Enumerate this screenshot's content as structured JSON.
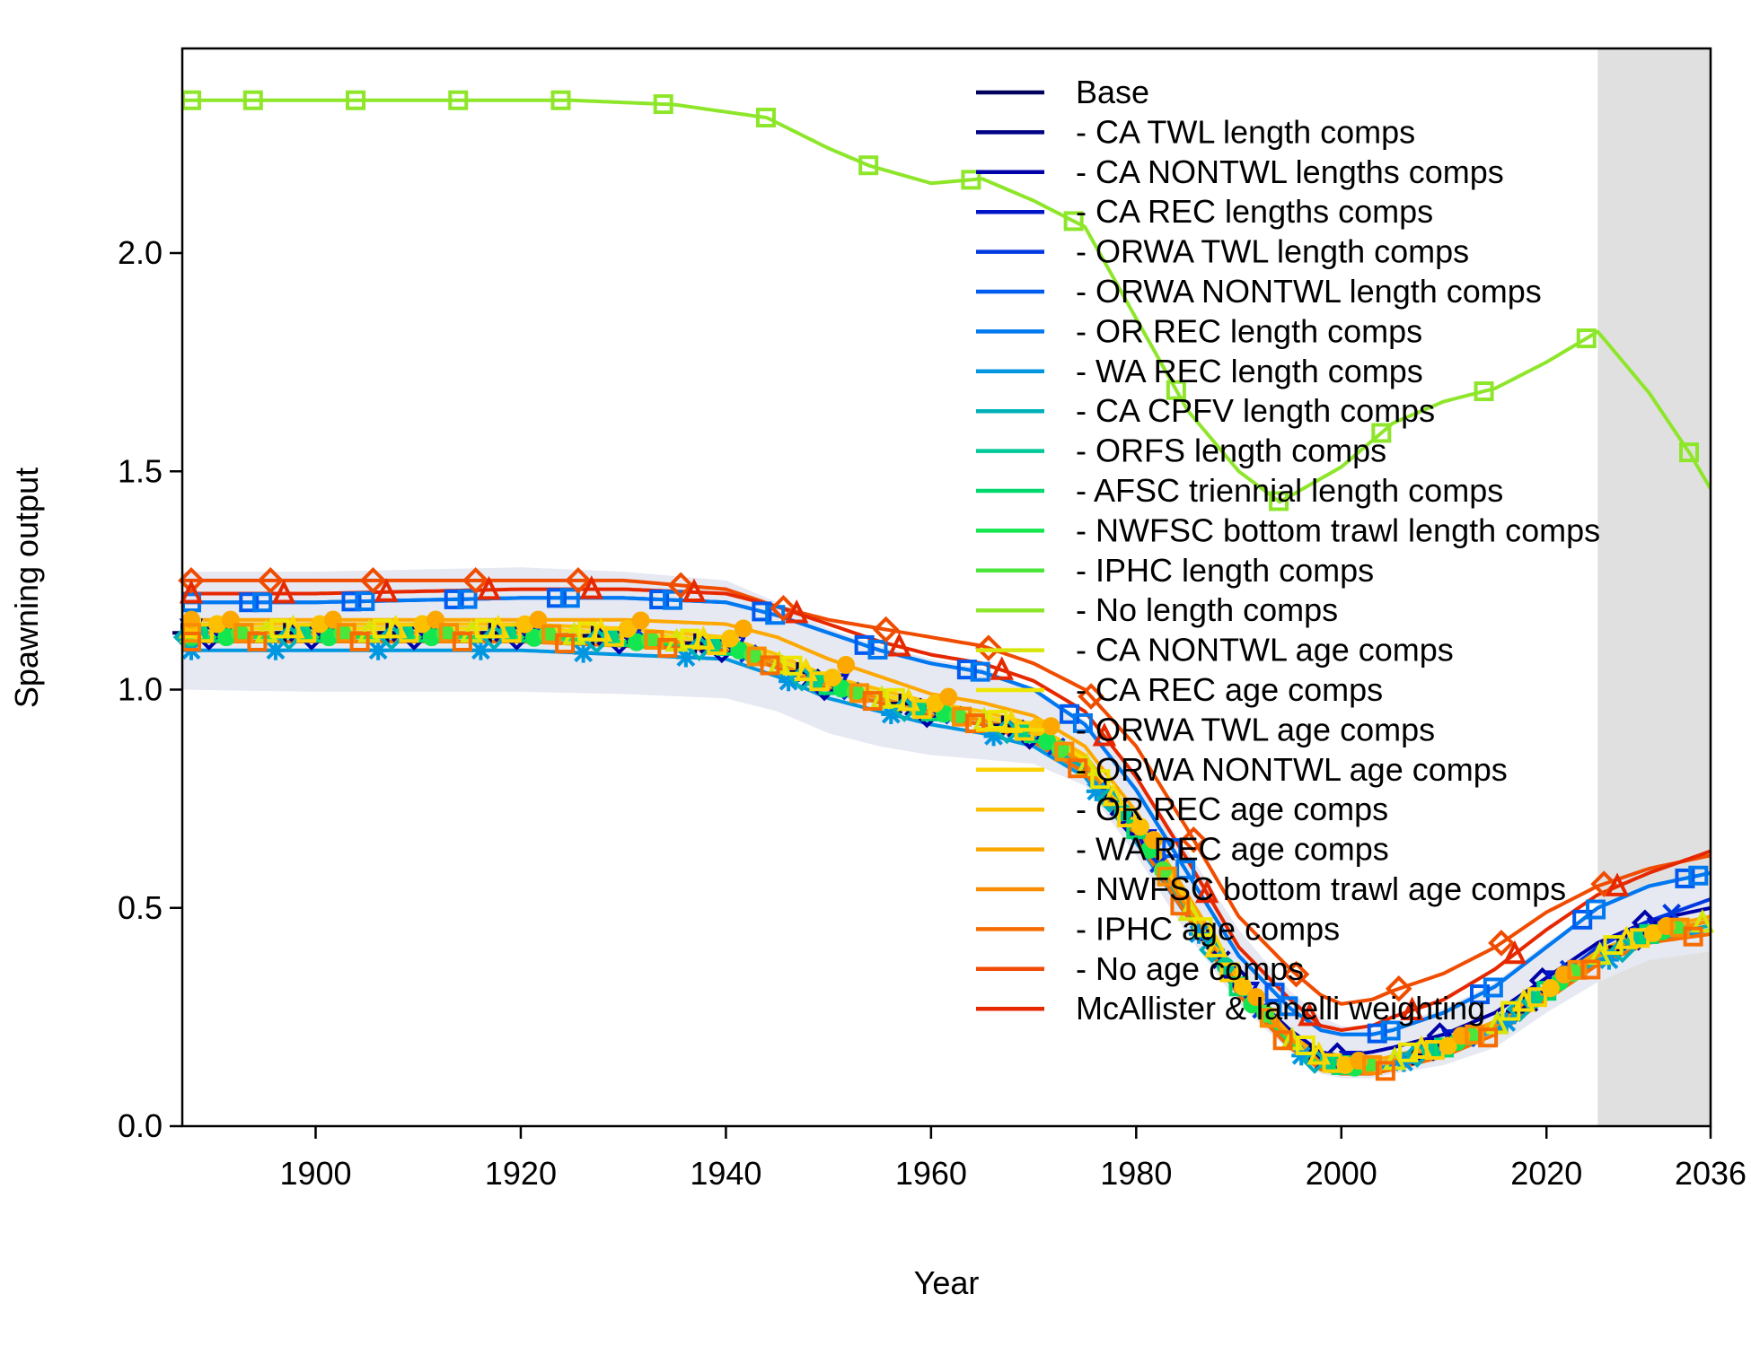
{
  "chart_data": {
    "type": "line",
    "xlabel": "Year",
    "ylabel": "Spawning output",
    "xlim": [
      1887,
      2036
    ],
    "ylim": [
      0,
      2.45
    ],
    "x_ticks": [
      1900,
      1920,
      1940,
      1960,
      1980,
      2000,
      2020,
      2036
    ],
    "y_ticks": [
      "0.0",
      "0.5",
      "1.0",
      "1.5",
      "2.0"
    ],
    "forecast_shading": [
      2025,
      2036
    ],
    "uncertainty_band": {
      "color": "#e6e8f2",
      "x": [
        1887,
        1900,
        1920,
        1930,
        1940,
        1945,
        1950,
        1955,
        1960,
        1965,
        1970,
        1975,
        1980,
        1985,
        1990,
        1995,
        1998,
        2000,
        2003,
        2005,
        2010,
        2015,
        2020,
        2025,
        2030,
        2036
      ],
      "lower": [
        1.0,
        0.995,
        0.995,
        0.99,
        0.98,
        0.95,
        0.9,
        0.87,
        0.85,
        0.84,
        0.83,
        0.78,
        0.62,
        0.44,
        0.28,
        0.17,
        0.12,
        0.11,
        0.11,
        0.12,
        0.14,
        0.18,
        0.26,
        0.33,
        0.38,
        0.4
      ],
      "upper": [
        1.27,
        1.27,
        1.28,
        1.27,
        1.25,
        1.2,
        1.14,
        1.1,
        1.07,
        1.05,
        1.0,
        0.93,
        0.8,
        0.63,
        0.45,
        0.31,
        0.25,
        0.23,
        0.22,
        0.23,
        0.27,
        0.33,
        0.42,
        0.5,
        0.55,
        0.58
      ]
    },
    "x": [
      1887,
      1900,
      1920,
      1930,
      1940,
      1945,
      1950,
      1955,
      1960,
      1965,
      1970,
      1975,
      1980,
      1985,
      1990,
      1995,
      1998,
      2000,
      2003,
      2005,
      2010,
      2015,
      2020,
      2025,
      2030,
      2036
    ],
    "series": [
      {
        "name": "Base",
        "color": "#00005c",
        "marker": "plus",
        "values": [
          1.13,
          1.13,
          1.13,
          1.12,
          1.1,
          1.06,
          1.01,
          0.98,
          0.95,
          0.93,
          0.9,
          0.83,
          0.68,
          0.5,
          0.32,
          0.2,
          0.15,
          0.14,
          0.14,
          0.15,
          0.18,
          0.23,
          0.31,
          0.39,
          0.44,
          0.47
        ]
      },
      {
        "name": "- CA TWL length comps",
        "color": "#000087",
        "marker": "cross",
        "values": [
          1.13,
          1.13,
          1.13,
          1.12,
          1.1,
          1.06,
          1.01,
          0.98,
          0.95,
          0.93,
          0.9,
          0.83,
          0.68,
          0.5,
          0.32,
          0.2,
          0.15,
          0.14,
          0.14,
          0.15,
          0.18,
          0.23,
          0.31,
          0.39,
          0.44,
          0.47
        ]
      },
      {
        "name": "- CA NONTWL lengths comps",
        "color": "#0000a8",
        "marker": "diamond",
        "values": [
          1.12,
          1.12,
          1.12,
          1.11,
          1.09,
          1.05,
          1.0,
          0.97,
          0.94,
          0.92,
          0.89,
          0.82,
          0.68,
          0.51,
          0.33,
          0.22,
          0.17,
          0.16,
          0.17,
          0.18,
          0.21,
          0.26,
          0.34,
          0.42,
          0.47,
          0.5
        ]
      },
      {
        "name": "- CA REC lengths comps",
        "color": "#0015c8",
        "marker": "triangle-down",
        "values": [
          1.14,
          1.14,
          1.14,
          1.13,
          1.11,
          1.07,
          1.02,
          0.99,
          0.96,
          0.94,
          0.91,
          0.84,
          0.69,
          0.51,
          0.33,
          0.21,
          0.16,
          0.15,
          0.15,
          0.16,
          0.19,
          0.24,
          0.32,
          0.4,
          0.45,
          0.48
        ]
      },
      {
        "name": "- ORWA TWL length comps",
        "color": "#0039e0",
        "marker": "cross",
        "values": [
          1.13,
          1.13,
          1.13,
          1.12,
          1.1,
          1.06,
          1.01,
          0.98,
          0.95,
          0.93,
          0.9,
          0.83,
          0.68,
          0.5,
          0.32,
          0.2,
          0.15,
          0.14,
          0.14,
          0.15,
          0.18,
          0.23,
          0.32,
          0.41,
          0.47,
          0.52
        ]
      },
      {
        "name": "- ORWA NONTWL length comps",
        "color": "#005af0",
        "marker": "square",
        "values": [
          1.2,
          1.2,
          1.21,
          1.21,
          1.2,
          1.17,
          1.13,
          1.09,
          1.06,
          1.04,
          1.0,
          0.92,
          0.77,
          0.58,
          0.39,
          0.27,
          0.22,
          0.21,
          0.21,
          0.22,
          0.26,
          0.32,
          0.41,
          0.5,
          0.55,
          0.58
        ]
      },
      {
        "name": "- OR REC length comps",
        "color": "#0078f0",
        "marker": "square",
        "values": [
          1.2,
          1.2,
          1.21,
          1.21,
          1.2,
          1.17,
          1.13,
          1.09,
          1.06,
          1.04,
          1.0,
          0.92,
          0.77,
          0.58,
          0.39,
          0.27,
          0.22,
          0.21,
          0.21,
          0.22,
          0.26,
          0.32,
          0.41,
          0.5,
          0.55,
          0.58
        ]
      },
      {
        "name": "- WA REC length comps",
        "color": "#0097e0",
        "marker": "asterisk",
        "values": [
          1.09,
          1.09,
          1.09,
          1.08,
          1.07,
          1.03,
          0.98,
          0.95,
          0.92,
          0.9,
          0.87,
          0.8,
          0.65,
          0.48,
          0.3,
          0.18,
          0.13,
          0.12,
          0.13,
          0.14,
          0.17,
          0.22,
          0.3,
          0.37,
          0.42,
          0.45
        ]
      },
      {
        "name": "- CA CPFV length comps",
        "color": "#00b0b8",
        "marker": "diamond",
        "values": [
          1.12,
          1.12,
          1.12,
          1.11,
          1.09,
          1.05,
          1.0,
          0.97,
          0.94,
          0.92,
          0.89,
          0.82,
          0.67,
          0.49,
          0.31,
          0.19,
          0.14,
          0.13,
          0.14,
          0.15,
          0.18,
          0.23,
          0.31,
          0.38,
          0.43,
          0.46
        ]
      },
      {
        "name": "- ORFS length comps",
        "color": "#00c896",
        "marker": "circle",
        "values": [
          1.13,
          1.13,
          1.13,
          1.12,
          1.1,
          1.06,
          1.01,
          0.98,
          0.95,
          0.93,
          0.9,
          0.83,
          0.68,
          0.5,
          0.32,
          0.2,
          0.15,
          0.14,
          0.14,
          0.15,
          0.18,
          0.23,
          0.31,
          0.39,
          0.44,
          0.47
        ]
      },
      {
        "name": "- AFSC triennial length comps",
        "color": "#00d86e",
        "marker": "square",
        "values": [
          1.13,
          1.13,
          1.13,
          1.12,
          1.1,
          1.06,
          1.01,
          0.98,
          0.95,
          0.93,
          0.9,
          0.83,
          0.68,
          0.5,
          0.32,
          0.2,
          0.15,
          0.14,
          0.14,
          0.15,
          0.18,
          0.23,
          0.31,
          0.39,
          0.44,
          0.47
        ]
      },
      {
        "name": "- NWFSC bottom trawl length comps",
        "color": "#14e650",
        "marker": "circle",
        "values": [
          1.12,
          1.12,
          1.12,
          1.11,
          1.1,
          1.06,
          1.01,
          0.98,
          0.95,
          0.93,
          0.9,
          0.83,
          0.68,
          0.5,
          0.31,
          0.19,
          0.14,
          0.13,
          0.14,
          0.15,
          0.18,
          0.23,
          0.31,
          0.39,
          0.44,
          0.47
        ]
      },
      {
        "name": "- IPHC length comps",
        "color": "#4ae63c",
        "marker": "circle",
        "values": [
          1.13,
          1.13,
          1.13,
          1.12,
          1.1,
          1.06,
          1.01,
          0.98,
          0.95,
          0.93,
          0.9,
          0.83,
          0.68,
          0.5,
          0.32,
          0.2,
          0.15,
          0.14,
          0.14,
          0.15,
          0.18,
          0.23,
          0.31,
          0.39,
          0.44,
          0.47
        ]
      },
      {
        "name": "- No length comps",
        "color": "#8ee62a",
        "marker": "square",
        "x": [
          1887,
          1895,
          1905,
          1915,
          1925,
          1935,
          1944,
          1950,
          1954,
          1960,
          1965,
          1970,
          1975,
          1980,
          1985,
          1990,
          1994,
          2000,
          2005,
          2010,
          2015,
          2020,
          2025,
          2030,
          2034,
          2036
        ],
        "values": [
          2.35,
          2.35,
          2.35,
          2.35,
          2.35,
          2.34,
          2.31,
          2.24,
          2.2,
          2.16,
          2.17,
          2.12,
          2.06,
          1.85,
          1.64,
          1.5,
          1.43,
          1.51,
          1.61,
          1.66,
          1.69,
          1.75,
          1.82,
          1.68,
          1.54,
          1.46
        ]
      },
      {
        "name": "- CA NONTWL age comps",
        "color": "#d6e60a",
        "marker": "triangle",
        "values": [
          1.13,
          1.13,
          1.13,
          1.12,
          1.1,
          1.06,
          1.01,
          0.98,
          0.95,
          0.93,
          0.9,
          0.83,
          0.68,
          0.5,
          0.32,
          0.2,
          0.15,
          0.14,
          0.14,
          0.15,
          0.18,
          0.23,
          0.31,
          0.39,
          0.44,
          0.47
        ]
      },
      {
        "name": "- CA REC age comps",
        "color": "#ece600",
        "marker": "square",
        "values": [
          1.14,
          1.14,
          1.14,
          1.13,
          1.11,
          1.07,
          1.02,
          0.99,
          0.96,
          0.94,
          0.91,
          0.84,
          0.69,
          0.51,
          0.33,
          0.21,
          0.16,
          0.15,
          0.15,
          0.16,
          0.19,
          0.24,
          0.32,
          0.4,
          0.45,
          0.48
        ]
      },
      {
        "name": "- ORWA TWL age comps",
        "color": "#f6da00",
        "marker": "triangle",
        "values": [
          1.14,
          1.14,
          1.14,
          1.13,
          1.11,
          1.07,
          1.02,
          0.99,
          0.96,
          0.94,
          0.91,
          0.84,
          0.69,
          0.51,
          0.33,
          0.21,
          0.16,
          0.15,
          0.15,
          0.16,
          0.19,
          0.24,
          0.32,
          0.4,
          0.45,
          0.48
        ]
      },
      {
        "name": "- ORWA NONTWL age comps",
        "color": "#fbd000",
        "marker": "square",
        "values": [
          1.13,
          1.13,
          1.13,
          1.12,
          1.1,
          1.06,
          1.01,
          0.98,
          0.95,
          0.93,
          0.9,
          0.83,
          0.68,
          0.5,
          0.32,
          0.2,
          0.15,
          0.14,
          0.14,
          0.15,
          0.18,
          0.23,
          0.31,
          0.39,
          0.44,
          0.47
        ]
      },
      {
        "name": "- OR REC age comps",
        "color": "#fcc000",
        "marker": "circle",
        "values": [
          1.15,
          1.15,
          1.15,
          1.14,
          1.12,
          1.08,
          1.03,
          1.0,
          0.97,
          0.95,
          0.92,
          0.85,
          0.7,
          0.52,
          0.33,
          0.2,
          0.15,
          0.14,
          0.14,
          0.15,
          0.18,
          0.23,
          0.31,
          0.39,
          0.44,
          0.47
        ]
      },
      {
        "name": "- WA REC age comps",
        "color": "#fca800",
        "marker": "circle",
        "values": [
          1.16,
          1.16,
          1.16,
          1.16,
          1.15,
          1.12,
          1.07,
          1.03,
          0.99,
          0.97,
          0.94,
          0.87,
          0.72,
          0.53,
          0.34,
          0.21,
          0.16,
          0.15,
          0.15,
          0.16,
          0.19,
          0.24,
          0.32,
          0.4,
          0.45,
          0.48
        ]
      },
      {
        "name": "- NWFSC bottom trawl age comps",
        "color": "#f98c00",
        "marker": "square",
        "values": [
          1.13,
          1.13,
          1.13,
          1.12,
          1.1,
          1.06,
          1.01,
          0.98,
          0.95,
          0.93,
          0.9,
          0.83,
          0.68,
          0.5,
          0.32,
          0.2,
          0.15,
          0.14,
          0.14,
          0.15,
          0.18,
          0.23,
          0.31,
          0.39,
          0.44,
          0.47
        ]
      },
      {
        "name": "- IPHC age comps",
        "color": "#f66c00",
        "marker": "square",
        "values": [
          1.11,
          1.11,
          1.11,
          1.1,
          1.09,
          1.05,
          1.0,
          0.97,
          0.94,
          0.92,
          0.88,
          0.81,
          0.66,
          0.48,
          0.3,
          0.18,
          0.13,
          0.12,
          0.12,
          0.13,
          0.16,
          0.21,
          0.29,
          0.37,
          0.42,
          0.44
        ]
      },
      {
        "name": "- No age comps",
        "color": "#f04c00",
        "marker": "diamond",
        "values": [
          1.25,
          1.25,
          1.25,
          1.25,
          1.23,
          1.19,
          1.16,
          1.14,
          1.12,
          1.1,
          1.06,
          1.0,
          0.87,
          0.68,
          0.48,
          0.36,
          0.3,
          0.28,
          0.29,
          0.31,
          0.35,
          0.41,
          0.49,
          0.55,
          0.59,
          0.62
        ]
      },
      {
        "name": "McAllister & Ianelli weighting",
        "color": "#e62800",
        "marker": "triangle",
        "values": [
          1.22,
          1.22,
          1.23,
          1.23,
          1.22,
          1.19,
          1.15,
          1.11,
          1.08,
          1.06,
          1.02,
          0.95,
          0.8,
          0.61,
          0.41,
          0.29,
          0.23,
          0.22,
          0.23,
          0.25,
          0.29,
          0.36,
          0.45,
          0.53,
          0.58,
          0.63
        ]
      }
    ]
  }
}
